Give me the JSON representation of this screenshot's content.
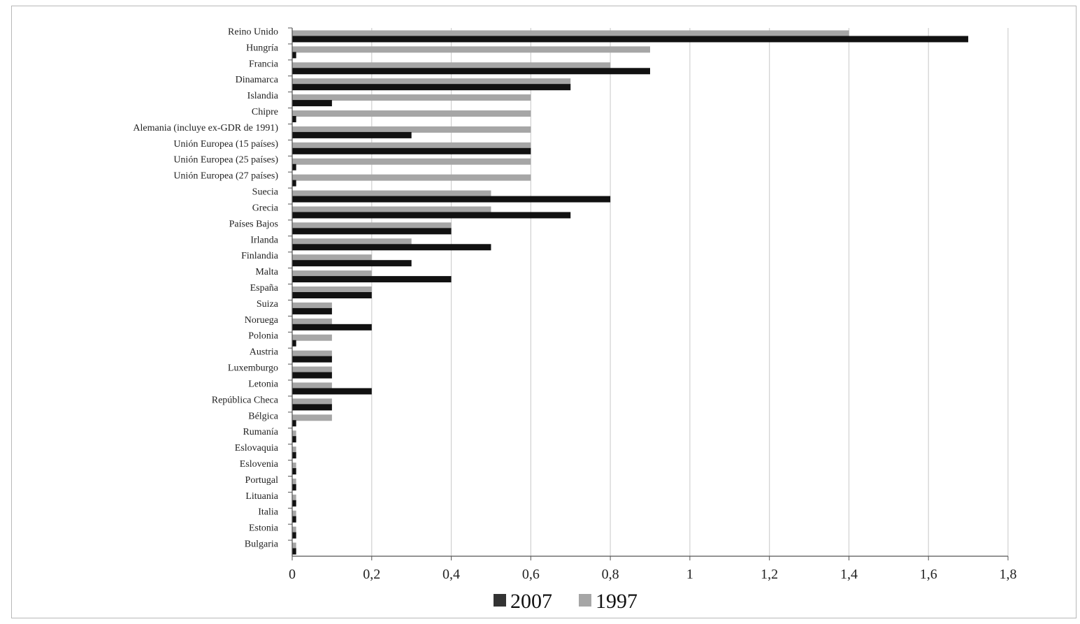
{
  "chart_data": {
    "type": "bar",
    "orientation": "horizontal",
    "title": "",
    "xlabel": "",
    "ylabel": "",
    "xlim": [
      0,
      1.8
    ],
    "grid": true,
    "legend_position": "bottom",
    "x_ticks": [
      {
        "value": 0,
        "label": "0"
      },
      {
        "value": 0.2,
        "label": "0,2"
      },
      {
        "value": 0.4,
        "label": "0,4"
      },
      {
        "value": 0.6,
        "label": "0,6"
      },
      {
        "value": 0.8,
        "label": "0,8"
      },
      {
        "value": 1.0,
        "label": "1"
      },
      {
        "value": 1.2,
        "label": "1,2"
      },
      {
        "value": 1.4,
        "label": "1,4"
      },
      {
        "value": 1.6,
        "label": "1,6"
      },
      {
        "value": 1.8,
        "label": "1,8"
      }
    ],
    "categories": [
      "Reino Unido",
      "Hungría",
      "Francia",
      "Dinamarca",
      "Islandia",
      "Chipre",
      "Alemania (incluye ex-GDR de 1991)",
      "Unión Europea (15 países)",
      "Unión Europea (25 países)",
      "Unión Europea (27 países)",
      "Suecia",
      "Grecia",
      "Países Bajos",
      "Irlanda",
      "Finlandia",
      "Malta",
      "España",
      "Suiza",
      "Noruega",
      "Polonia",
      "Austria",
      "Luxemburgo",
      "Letonia",
      "República Checa",
      "Bélgica",
      "Rumanía",
      "Eslovaquia",
      "Eslovenia",
      "Portugal",
      "Lituania",
      "Italia",
      "Estonia",
      "Bulgaria"
    ],
    "series": [
      {
        "name": "1997",
        "color": "#a6a6a6",
        "values": [
          1.4,
          0.9,
          0.8,
          0.7,
          0.6,
          0.6,
          0.6,
          0.6,
          0.6,
          0.6,
          0.5,
          0.5,
          0.4,
          0.3,
          0.2,
          0.2,
          0.2,
          0.1,
          0.1,
          0.1,
          0.1,
          0.1,
          0.1,
          0.1,
          0.1,
          0.01,
          0.01,
          0.01,
          0.01,
          0.01,
          0.01,
          0.01,
          0.01
        ]
      },
      {
        "name": "2007",
        "color": "#111111",
        "values": [
          1.7,
          0.01,
          0.9,
          0.7,
          0.1,
          0.01,
          0.3,
          0.6,
          0.01,
          0.01,
          0.8,
          0.7,
          0.4,
          0.5,
          0.3,
          0.4,
          0.2,
          0.1,
          0.2,
          0.01,
          0.1,
          0.1,
          0.2,
          0.1,
          0.01,
          0.01,
          0.01,
          0.01,
          0.01,
          0.01,
          0.01,
          0.01,
          0.01
        ]
      }
    ],
    "legend": [
      {
        "label": "2007",
        "color": "#333333"
      },
      {
        "label": "1997",
        "color": "#a6a6a6"
      }
    ]
  }
}
